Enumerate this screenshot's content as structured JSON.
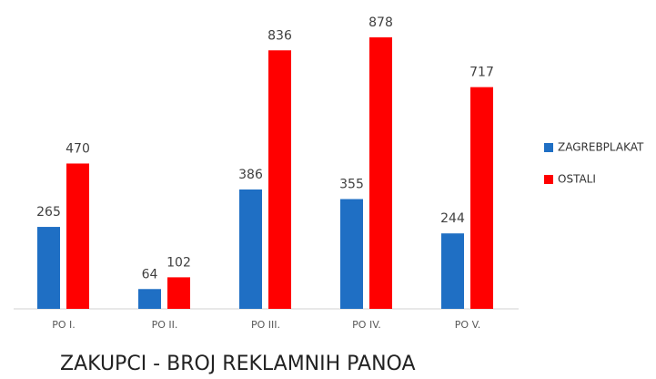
{
  "chart_data": {
    "type": "bar",
    "title": "ZAKUPCI - BROJ REKLAMNIH PANOA",
    "categories": [
      "PO I.",
      "PO II.",
      "PO III.",
      "PO IV.",
      "PO V."
    ],
    "series": [
      {
        "name": "ZAGREBPLAKAT",
        "color": "#1f6fc4",
        "values": [
          265,
          64,
          386,
          355,
          244
        ]
      },
      {
        "name": "OSTALI",
        "color": "#ff0000",
        "values": [
          470,
          102,
          836,
          878,
          717
        ]
      }
    ],
    "legend": "right"
  }
}
